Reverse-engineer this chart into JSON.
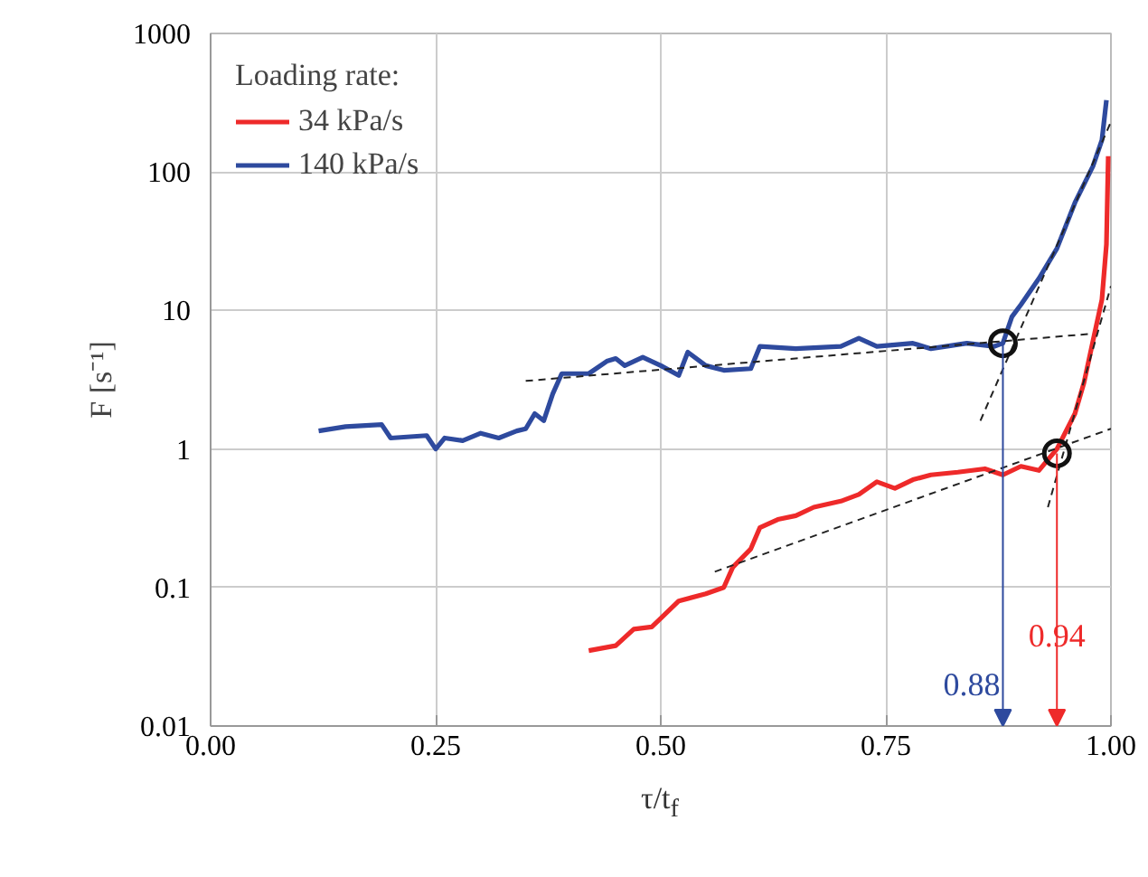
{
  "chart_data": {
    "type": "line",
    "xlabel": "τ/t$_{f}$",
    "ylabel": "F [s⁻¹]",
    "legend_title": "Loading rate:",
    "log": "y",
    "grid": true,
    "legend": "top left",
    "line_style": "solid",
    "marker": "none",
    "xlim": [
      0,
      1
    ],
    "ylim": [
      0.01,
      1000
    ],
    "xticks": [
      {
        "value": 0,
        "label": "0.00"
      },
      {
        "value": 0.25,
        "label": "0.25"
      },
      {
        "value": 0.5,
        "label": "0.50"
      },
      {
        "value": 0.75,
        "label": "0.75"
      },
      {
        "value": 1,
        "label": "1.00"
      }
    ],
    "yticks": [
      0.01,
      0.1,
      1,
      10,
      100,
      1000
    ],
    "series": [
      {
        "name": "34 kPa/s",
        "color": "#ee2a2a",
        "x": [
          0.42,
          0.45,
          0.47,
          0.49,
          0.5,
          0.52,
          0.55,
          0.57,
          0.58,
          0.6,
          0.61,
          0.63,
          0.65,
          0.67,
          0.7,
          0.72,
          0.74,
          0.76,
          0.78,
          0.8,
          0.83,
          0.86,
          0.88,
          0.9,
          0.92,
          0.94,
          0.96,
          0.97,
          0.98,
          0.99,
          0.995,
          0.997
        ],
        "values": [
          0.035,
          0.038,
          0.05,
          0.052,
          0.06,
          0.08,
          0.09,
          0.1,
          0.14,
          0.19,
          0.27,
          0.31,
          0.33,
          0.38,
          0.42,
          0.47,
          0.58,
          0.52,
          0.6,
          0.65,
          0.68,
          0.72,
          0.65,
          0.75,
          0.7,
          1.0,
          1.8,
          3.0,
          6,
          12,
          30,
          130
        ]
      },
      {
        "name": "140 kPa/s",
        "color": "#2e4a9e",
        "x": [
          0.12,
          0.15,
          0.19,
          0.2,
          0.24,
          0.25,
          0.26,
          0.28,
          0.3,
          0.32,
          0.34,
          0.35,
          0.36,
          0.37,
          0.38,
          0.39,
          0.42,
          0.44,
          0.45,
          0.46,
          0.48,
          0.5,
          0.52,
          0.53,
          0.55,
          0.57,
          0.6,
          0.61,
          0.65,
          0.7,
          0.72,
          0.74,
          0.78,
          0.8,
          0.84,
          0.87,
          0.88,
          0.89,
          0.9,
          0.92,
          0.94,
          0.96,
          0.98,
          0.99,
          0.995
        ],
        "values": [
          1.35,
          1.45,
          1.5,
          1.2,
          1.25,
          1.0,
          1.2,
          1.15,
          1.3,
          1.2,
          1.35,
          1.4,
          1.8,
          1.6,
          2.5,
          3.5,
          3.5,
          4.3,
          4.5,
          4.0,
          4.6,
          4.0,
          3.4,
          5.0,
          4.0,
          3.7,
          3.8,
          5.5,
          5.3,
          5.5,
          6.3,
          5.5,
          5.8,
          5.3,
          5.8,
          5.5,
          5.8,
          9,
          11,
          17,
          28,
          60,
          110,
          170,
          330
        ]
      },
      {
        "type": "line",
        "line_style": "dashed",
        "color": "#222222",
        "x": [
          0.35,
          0.98
        ],
        "values": [
          3.1,
          6.8
        ]
      },
      {
        "type": "line",
        "line_style": "dashed",
        "color": "#222222",
        "x": [
          0.855,
          1.0
        ],
        "values": [
          1.6,
          230
        ]
      },
      {
        "type": "line",
        "line_style": "dashed",
        "color": "#222222",
        "x": [
          0.56,
          1.0
        ],
        "values": [
          0.13,
          1.4
        ]
      },
      {
        "type": "line",
        "line_style": "dashed",
        "color": "#222222",
        "x": [
          0.93,
          1.0
        ],
        "values": [
          0.38,
          15
        ]
      },
      {
        "type": "scatter",
        "marker": "circle",
        "color": "#111111",
        "x": [
          0.94,
          0.88
        ],
        "values": [
          0.93,
          5.8
        ]
      }
    ],
    "annotations": [
      "0.94",
      "0.88"
    ]
  }
}
